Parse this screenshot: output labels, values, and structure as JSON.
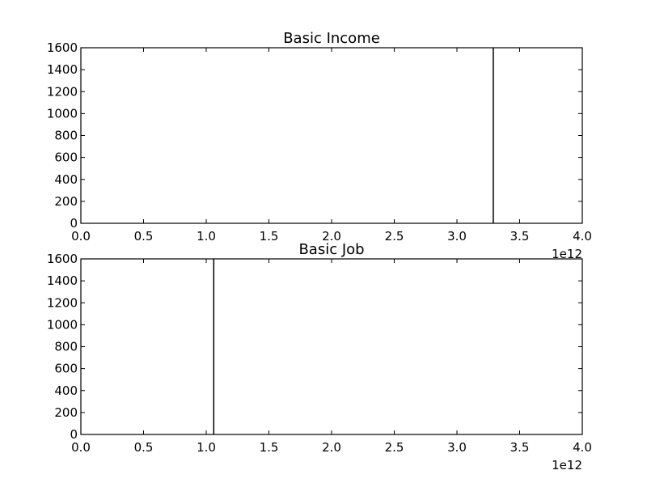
{
  "chart_data": [
    {
      "type": "histogram",
      "title": "Basic Income",
      "xlim": [
        0,
        4000000000000
      ],
      "ylim": [
        0,
        1600
      ],
      "x_ticks": [
        "0.0",
        "0.5",
        "1.0",
        "1.5",
        "2.0",
        "2.5",
        "3.0",
        "3.5",
        "4.0"
      ],
      "y_ticks": [
        "0",
        "200",
        "400",
        "600",
        "800",
        "1000",
        "1200",
        "1400",
        "1600"
      ],
      "x_offset_label": "1e12",
      "bars": [
        {
          "x": 3290000000000,
          "height": 1600
        }
      ],
      "grid": false,
      "bar_color": "#000000"
    },
    {
      "type": "histogram",
      "title": "Basic Job",
      "xlim": [
        0,
        4000000000000
      ],
      "ylim": [
        0,
        1600
      ],
      "x_ticks": [
        "0.0",
        "0.5",
        "1.0",
        "1.5",
        "2.0",
        "2.5",
        "3.0",
        "3.5",
        "4.0"
      ],
      "y_ticks": [
        "0",
        "200",
        "400",
        "600",
        "800",
        "1000",
        "1200",
        "1400",
        "1600"
      ],
      "x_offset_label": "1e12",
      "bars": [
        {
          "x": 1060000000000,
          "height": 1600
        }
      ],
      "grid": false,
      "bar_color": "#000000"
    }
  ]
}
